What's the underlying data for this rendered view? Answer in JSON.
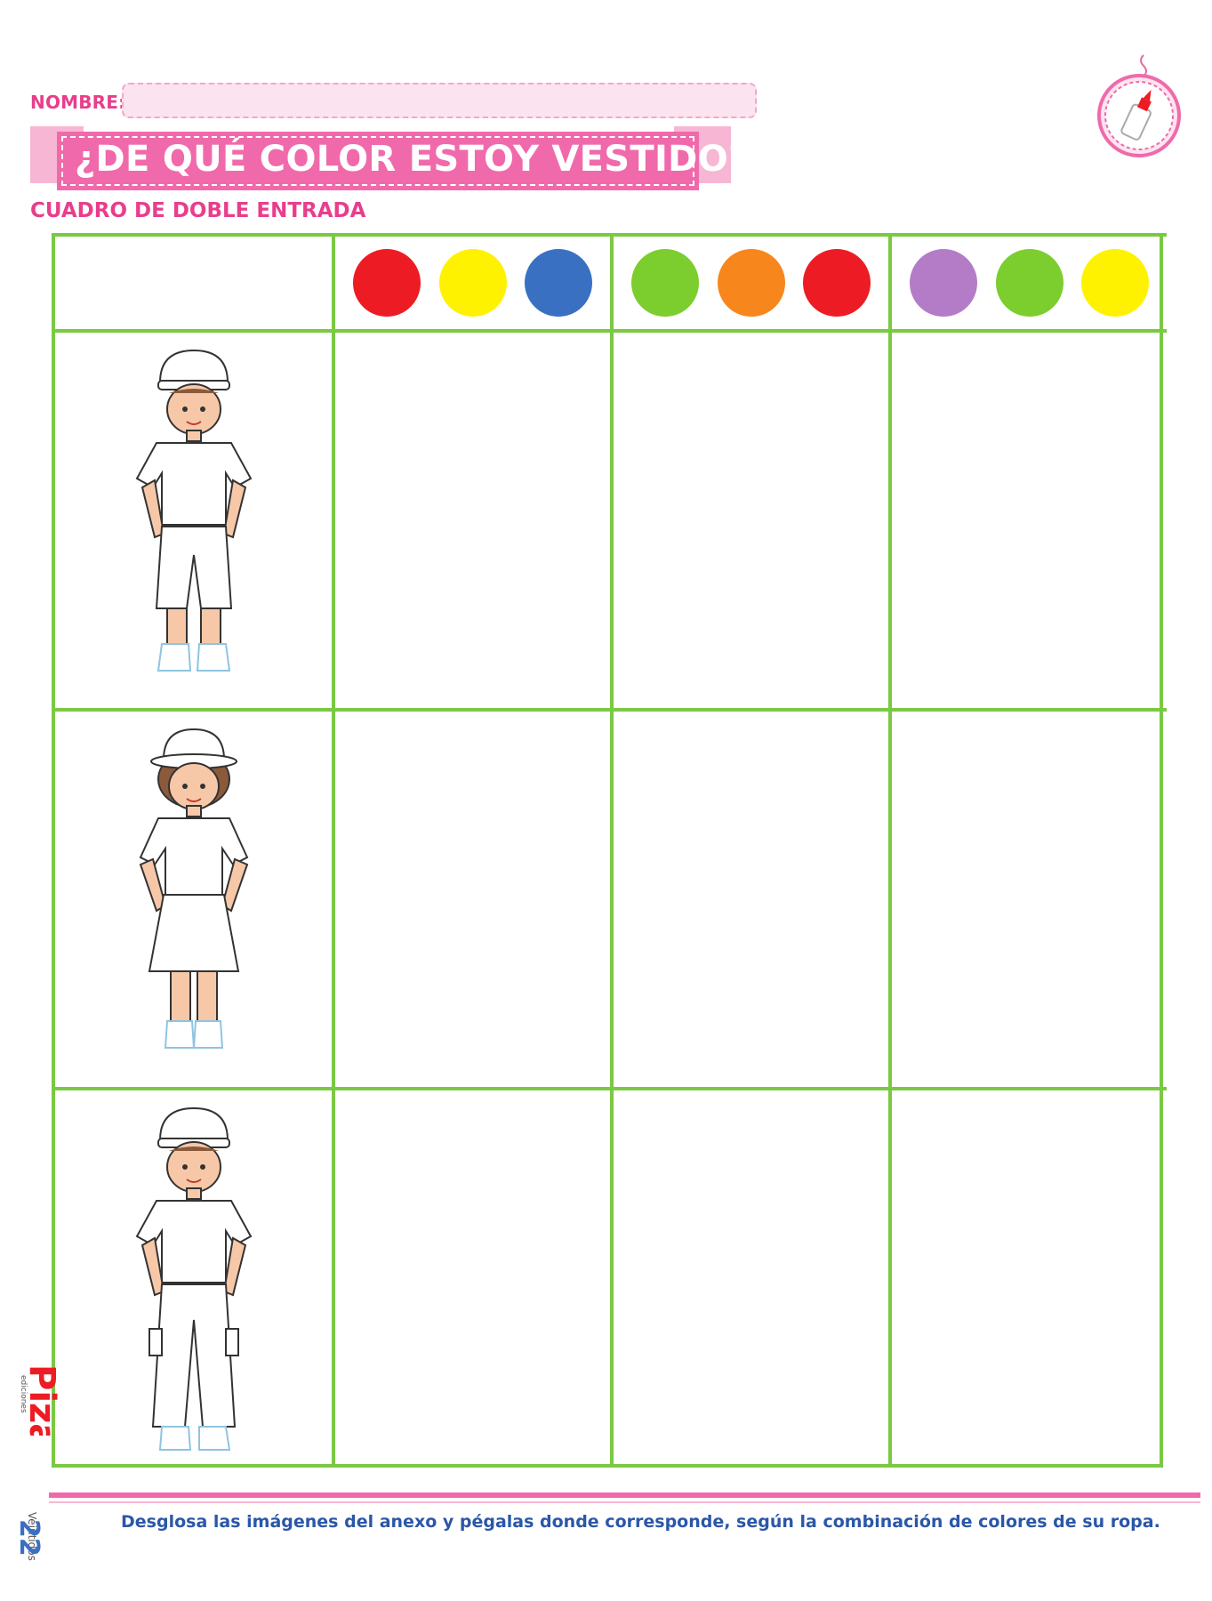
{
  "header": {
    "name_label": "NOMBRE:",
    "title": "¿DE QUÉ COLOR ESTOY VESTIDO?",
    "subtitle": "CUADRO DE DOBLE ENTRADA"
  },
  "badge": {
    "icon": "glue-bottle-icon"
  },
  "table": {
    "color_groups": [
      {
        "colors": [
          "#ed1c24",
          "#fff200",
          "#3a70c2"
        ]
      },
      {
        "colors": [
          "#7ccd2e",
          "#f7861c",
          "#ed1c24"
        ]
      },
      {
        "colors": [
          "#b47cc6",
          "#7ccd2e",
          "#fff200"
        ]
      }
    ],
    "rows": [
      {
        "figure": "boy-cap-shorts-icon"
      },
      {
        "figure": "girl-hat-skirt-icon"
      },
      {
        "figure": "boy-cap-pants-icon"
      }
    ]
  },
  "footer": {
    "page_number": "22",
    "page_word": "Veintidós",
    "instruction": "Desglosa las imágenes del anexo y pégalas donde corresponde, según la combinación de colores de su ropa.",
    "logo_text": "Piza",
    "logo_subtext": "ediciones"
  },
  "colors": {
    "accent_pink": "#f06aab",
    "grid_green": "#7ac943",
    "text_blue": "#2b57a8"
  }
}
